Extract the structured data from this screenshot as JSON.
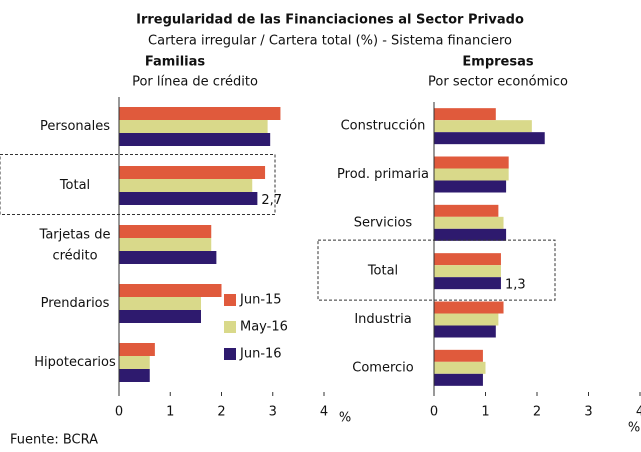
{
  "title": "Irregularidad de las Financiaciones al Sector Privado",
  "subtitle": "Cartera irregular / Cartera total (%) - Sistema financiero",
  "source": "Fuente: BCRA",
  "chart_data": [
    {
      "type": "hbar",
      "title": "Familias",
      "subtitle": "Por línea de crédito",
      "categories": [
        "Personales",
        "Total",
        "Tarjetas de crédito",
        "Prendarios",
        "Hipotecarios"
      ],
      "series": [
        {
          "name": "Jun-15",
          "color": "#e05a3c",
          "values": [
            3.15,
            2.85,
            1.8,
            2.0,
            0.7
          ]
        },
        {
          "name": "May-16",
          "color": "#d9d98a",
          "values": [
            2.9,
            2.6,
            1.8,
            1.6,
            0.6
          ]
        },
        {
          "name": "Jun-16",
          "color": "#2e1a6e",
          "values": [
            2.95,
            2.7,
            1.9,
            1.6,
            0.6
          ],
          "value_labels": [
            null,
            "2,7",
            null,
            null,
            null
          ]
        }
      ],
      "xlim": [
        0,
        4
      ],
      "xticks": [
        0,
        1,
        2,
        3,
        4
      ],
      "xlabel": "%",
      "legend": "lower right"
    },
    {
      "type": "hbar",
      "title": "Empresas",
      "subtitle": "Por sector económico",
      "categories": [
        "Construcción",
        "Prod. primaria",
        "Servicios",
        "Total",
        "Industria",
        "Comercio"
      ],
      "series": [
        {
          "color": "#e05a3c",
          "values": [
            1.2,
            1.45,
            1.25,
            1.3,
            1.35,
            0.95
          ]
        },
        {
          "color": "#d9d98a",
          "values": [
            1.9,
            1.45,
            1.35,
            1.3,
            1.25,
            1.0
          ]
        },
        {
          "color": "#2e1a6e",
          "values": [
            2.15,
            1.4,
            1.4,
            1.3,
            1.2,
            0.95
          ],
          "value_labels": [
            null,
            null,
            null,
            "1,3",
            null,
            null
          ]
        }
      ],
      "xlim": [
        0,
        4
      ],
      "xticks": [
        0,
        1,
        2,
        3,
        4
      ],
      "xlabel": "%"
    }
  ]
}
